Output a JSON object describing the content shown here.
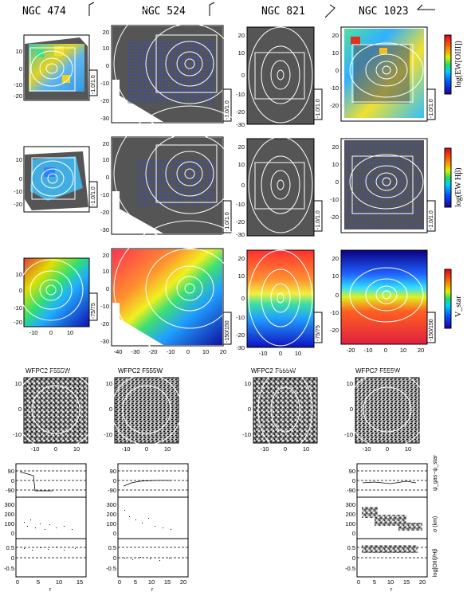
{
  "galaxies": [
    {
      "name": "NGC  474",
      "rng_ew1": "-1.0/1.0",
      "rng_ew2": "-1.0/1.0",
      "rng_v": "-75/75"
    },
    {
      "name": "NGC  524",
      "rng_ew1": "-1.0/1.0",
      "rng_ew2": "-1.0/1.0",
      "rng_v": "-150/150"
    },
    {
      "name": "NGC  821",
      "rng_ew1": "-1.0/1.0",
      "rng_ew2": "-1.0/1.0",
      "rng_v": "-75/75"
    },
    {
      "name": "NGC 1023",
      "rng_ew1": "-1.0/1.0",
      "rng_ew2": "-1.0/1.0",
      "rng_v": "-150/150"
    }
  ],
  "colorbar_labels": {
    "ew1": "log(EW[OIII])",
    "ew2": "log(EW Hβ)",
    "v": "V_star"
  },
  "hst_label": "WFPC2 F555W",
  "profile_ylabels": {
    "pa": "ψ_gas−ψ_star",
    "sigma": "σ (km)",
    "ratio": "log[OIII]/Hβ"
  },
  "profile_xlabel": "r",
  "profile_ticks": {
    "pa": [
      "90",
      "0",
      "-90"
    ],
    "sigma": [
      "300",
      "200",
      "100",
      "0"
    ],
    "ratio": [
      "0.5",
      "0",
      "-0.5"
    ]
  },
  "row_ticks": {
    "col0_y": [
      "10",
      "0",
      "-10",
      "-20"
    ],
    "col0_x": [
      "-10",
      "0",
      "10"
    ],
    "col1_y": [
      "20",
      "10",
      "0",
      "-10",
      "-20",
      "-30"
    ],
    "col1_x": [
      "-40",
      "-30",
      "-20",
      "-10",
      "0",
      "10",
      "20"
    ],
    "col2_y": [
      "20",
      "10",
      "0",
      "-10",
      "-20",
      "-30"
    ],
    "col2_x": [
      "-10",
      "0",
      "10"
    ],
    "col3_y": [
      "20",
      "10",
      "0",
      "-10",
      "-20"
    ],
    "col3_x": [
      "-20",
      "-10",
      "0",
      "10",
      "20"
    ],
    "hst_y": [
      "10",
      "0",
      "-10"
    ],
    "hst_x": [
      "-10",
      "0",
      "10"
    ]
  },
  "profile_x_ticks": {
    "col0": [
      "0",
      "5",
      "10",
      "15"
    ],
    "col1": [
      "0",
      "5",
      "10",
      "15",
      "20"
    ],
    "col3": [
      "0",
      "5",
      "10",
      "15",
      "20"
    ]
  },
  "colors": {
    "bg_gray": "#555555",
    "contour": "#ffffff"
  }
}
